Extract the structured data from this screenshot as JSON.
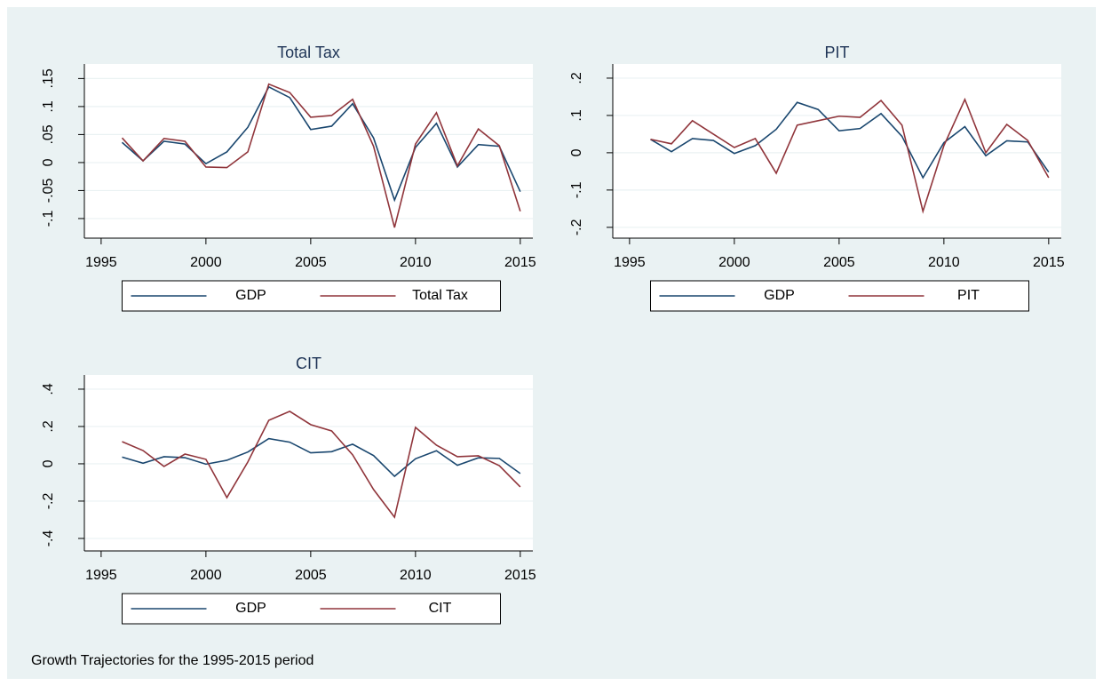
{
  "chart_data": [
    {
      "type": "line",
      "title": "Total Tax",
      "x": [
        1996,
        1997,
        1998,
        1999,
        2000,
        2001,
        2002,
        2003,
        2004,
        2005,
        2006,
        2007,
        2008,
        2009,
        2010,
        2011,
        2012,
        2013,
        2014,
        2015
      ],
      "series": [
        {
          "name": "GDP",
          "color": "#1a476f",
          "values": [
            0.036,
            0.003,
            0.038,
            0.033,
            -0.002,
            0.019,
            0.063,
            0.135,
            0.116,
            0.059,
            0.065,
            0.105,
            0.044,
            -0.067,
            0.027,
            0.07,
            -0.008,
            0.032,
            0.029,
            -0.052
          ]
        },
        {
          "name": "Total Tax",
          "color": "#90353b",
          "values": [
            0.044,
            0.003,
            0.043,
            0.038,
            -0.008,
            -0.009,
            0.019,
            0.14,
            0.125,
            0.081,
            0.084,
            0.113,
            0.029,
            -0.116,
            0.033,
            0.089,
            -0.006,
            0.06,
            0.03,
            -0.087
          ]
        }
      ],
      "xlim": [
        1994.2,
        2015.6
      ],
      "xticks": [
        1995,
        2000,
        2005,
        2010,
        2015
      ],
      "ylim": [
        -0.135,
        0.176
      ],
      "yticks": [
        {
          "value": -0.1,
          "label": "-.1"
        },
        {
          "value": -0.05,
          "label": "-.05"
        },
        0,
        {
          "value": 0.05,
          "label": ".05"
        },
        {
          "value": 0.1,
          "label": ".1"
        },
        {
          "value": 0.15,
          "label": ".15"
        }
      ],
      "grid": true,
      "legend": "bottom"
    },
    {
      "type": "line",
      "title": "PIT",
      "x": [
        1996,
        1997,
        1998,
        1999,
        2000,
        2001,
        2002,
        2003,
        2004,
        2005,
        2006,
        2007,
        2008,
        2009,
        2010,
        2011,
        2012,
        2013,
        2014,
        2015
      ],
      "series": [
        {
          "name": "GDP",
          "color": "#1a476f",
          "values": [
            0.036,
            0.003,
            0.038,
            0.033,
            -0.002,
            0.019,
            0.063,
            0.135,
            0.116,
            0.059,
            0.065,
            0.105,
            0.044,
            -0.067,
            0.027,
            0.07,
            -0.008,
            0.032,
            0.029,
            -0.052
          ]
        },
        {
          "name": "PIT",
          "color": "#90353b",
          "values": [
            0.036,
            0.024,
            0.086,
            0.05,
            0.014,
            0.038,
            -0.055,
            0.074,
            0.086,
            0.098,
            0.095,
            0.14,
            0.074,
            -0.157,
            0.019,
            0.143,
            0.0,
            0.076,
            0.033,
            -0.067
          ]
        }
      ],
      "xlim": [
        1994.2,
        2015.6
      ],
      "xticks": [
        1995,
        2000,
        2005,
        2010,
        2015
      ],
      "ylim": [
        -0.229,
        0.238
      ],
      "yticks": [
        {
          "value": -0.2,
          "label": "-.2"
        },
        {
          "value": -0.1,
          "label": "-.1"
        },
        0,
        {
          "value": 0.1,
          "label": ".1"
        },
        {
          "value": 0.2,
          "label": ".2"
        }
      ],
      "grid": true,
      "legend": "bottom"
    },
    {
      "type": "line",
      "title": "CIT",
      "x": [
        1996,
        1997,
        1998,
        1999,
        2000,
        2001,
        2002,
        2003,
        2004,
        2005,
        2006,
        2007,
        2008,
        2009,
        2010,
        2011,
        2012,
        2013,
        2014,
        2015
      ],
      "series": [
        {
          "name": "GDP",
          "color": "#1a476f",
          "values": [
            0.036,
            0.003,
            0.038,
            0.033,
            -0.002,
            0.019,
            0.063,
            0.135,
            0.116,
            0.059,
            0.065,
            0.105,
            0.044,
            -0.067,
            0.027,
            0.07,
            -0.008,
            0.032,
            0.029,
            -0.052
          ]
        },
        {
          "name": "CIT",
          "color": "#90353b",
          "values": [
            0.119,
            0.071,
            -0.014,
            0.052,
            0.024,
            -0.181,
            0.01,
            0.233,
            0.281,
            0.21,
            0.176,
            0.048,
            -0.138,
            -0.286,
            0.195,
            0.1,
            0.038,
            0.043,
            -0.01,
            -0.124
          ]
        }
      ],
      "xlim": [
        1994.2,
        2015.6
      ],
      "xticks": [
        1995,
        2000,
        2005,
        2010,
        2015
      ],
      "ylim": [
        -0.467,
        0.476
      ],
      "yticks": [
        {
          "value": -0.4,
          "label": "-.4"
        },
        {
          "value": -0.2,
          "label": "-.2"
        },
        0,
        {
          "value": 0.2,
          "label": ".2"
        },
        {
          "value": 0.4,
          "label": ".4"
        }
      ],
      "grid": true,
      "legend": "bottom"
    }
  ],
  "note": "Growth Trajectories for the 1995-2015 period"
}
